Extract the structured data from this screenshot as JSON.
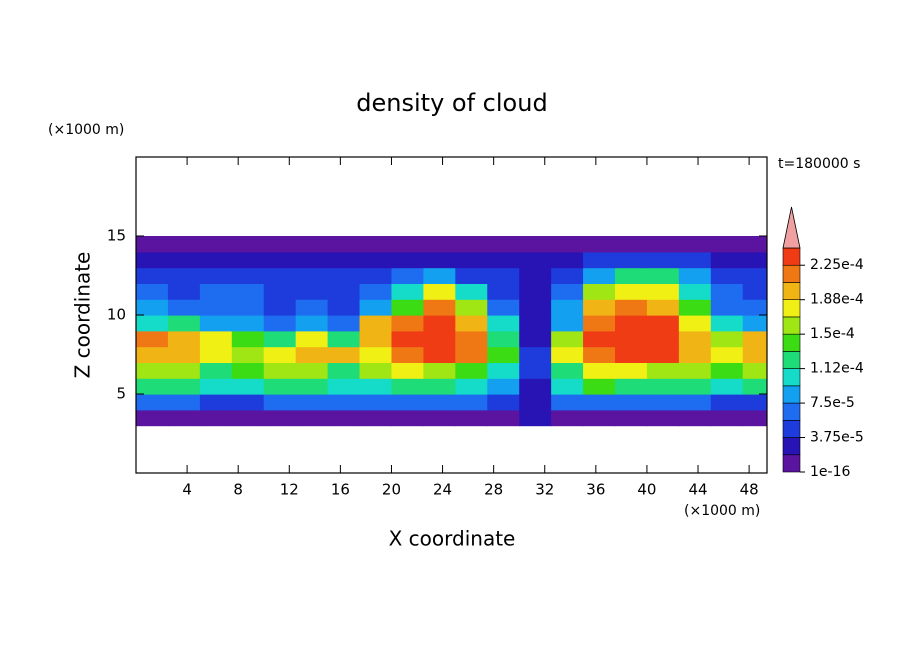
{
  "chart_data": {
    "type": "contour",
    "title": "density of cloud",
    "time_label": "t=180000 s",
    "xlabel": "X coordinate",
    "ylabel": "Z coordinate",
    "x_unit": "(×1000 m)",
    "y_unit": "(×1000 m)",
    "xlim": [
      0,
      49.4
    ],
    "ylim": [
      0,
      20
    ],
    "xticks": [
      4,
      8,
      12,
      16,
      20,
      24,
      28,
      32,
      36,
      40,
      44,
      48
    ],
    "yticks": [
      5,
      10,
      15
    ],
    "x": [
      1.25,
      3.75,
      6.25,
      8.75,
      11.25,
      13.75,
      16.25,
      18.75,
      21.25,
      23.75,
      26.25,
      28.75,
      31.25,
      33.75,
      36.25,
      38.75,
      41.25,
      43.75,
      46.25,
      48.75
    ],
    "y": [
      3.5,
      4.5,
      5.5,
      6.5,
      7.5,
      8.5,
      9.5,
      10.5,
      11.5,
      12.5,
      13.5,
      14.5
    ],
    "z": [
      [
        1e-05,
        1e-05,
        1e-05,
        1e-05,
        1e-05,
        1e-05,
        1e-05,
        1e-05,
        1e-05,
        1e-05,
        1e-05,
        1e-05,
        2e-05,
        1e-05,
        1e-05,
        1e-05,
        1e-05,
        1e-05,
        1e-05,
        1e-05
      ],
      [
        6e-05,
        6e-05,
        5e-05,
        5e-05,
        6e-05,
        6e-05,
        6e-05,
        6e-05,
        6e-05,
        6e-05,
        6e-05,
        5e-05,
        3e-05,
        6e-05,
        7e-05,
        7e-05,
        6e-05,
        6e-05,
        5e-05,
        5e-05
      ],
      [
        0.00012,
        0.00012,
        0.0001,
        0.00011,
        0.00012,
        0.00012,
        0.0001,
        0.00011,
        0.00012,
        0.00012,
        0.0001,
        9e-05,
        3e-05,
        0.0001,
        0.00014,
        0.00013,
        0.00012,
        0.00012,
        0.00011,
        0.00012
      ],
      [
        0.00016,
        0.00015,
        0.00013,
        0.00014,
        0.00015,
        0.00015,
        0.00013,
        0.00015,
        0.00017,
        0.00016,
        0.00014,
        0.0001,
        4e-05,
        0.00013,
        0.00018,
        0.00017,
        0.00016,
        0.00015,
        0.00014,
        0.00015
      ],
      [
        0.0002,
        0.00019,
        0.00017,
        0.00016,
        0.00018,
        0.0002,
        0.00019,
        0.00017,
        0.00022,
        0.00023,
        0.00021,
        0.00014,
        4e-05,
        0.00017,
        0.00022,
        0.00023,
        0.00023,
        0.0002,
        0.00017,
        0.00019
      ],
      [
        0.00021,
        0.0002,
        0.00018,
        0.00014,
        0.00013,
        0.00017,
        0.00013,
        0.00019,
        0.00023,
        0.00023,
        0.00022,
        0.00013,
        3e-05,
        0.00015,
        0.00023,
        0.00024,
        0.00024,
        0.0002,
        0.00016,
        0.0002
      ],
      [
        0.00011,
        0.00012,
        9e-05,
        8e-05,
        7e-05,
        8e-05,
        7e-05,
        0.00019,
        0.00021,
        0.00023,
        0.00019,
        0.0001,
        2e-05,
        9e-05,
        0.00022,
        0.00023,
        0.00023,
        0.00018,
        0.0001,
        9e-05
      ],
      [
        8e-05,
        7e-05,
        6e-05,
        6e-05,
        5e-05,
        6e-05,
        5e-05,
        9e-05,
        0.00014,
        0.00022,
        0.00015,
        6e-05,
        2e-05,
        8e-05,
        0.0002,
        0.00021,
        0.0002,
        0.00014,
        7e-05,
        6e-05
      ],
      [
        6e-05,
        5e-05,
        6e-05,
        6e-05,
        5e-05,
        5e-05,
        5e-05,
        6e-05,
        0.00011,
        0.00018,
        0.0001,
        5e-05,
        2e-05,
        6e-05,
        0.00016,
        0.00018,
        0.00017,
        0.00011,
        6e-05,
        5e-05
      ],
      [
        5e-05,
        4e-05,
        4e-05,
        5e-05,
        4e-05,
        4e-05,
        4e-05,
        4e-05,
        6e-05,
        8e-05,
        5e-05,
        4e-05,
        3e-05,
        4e-05,
        8e-05,
        0.00012,
        0.00012,
        8e-05,
        5e-05,
        4e-05
      ],
      [
        3e-05,
        3e-05,
        3e-05,
        3e-05,
        3e-05,
        3e-05,
        3e-05,
        3e-05,
        3e-05,
        3e-05,
        3e-05,
        3e-05,
        3e-05,
        3e-05,
        4e-05,
        5e-05,
        5e-05,
        4e-05,
        3e-05,
        3e-05
      ],
      [
        1e-05,
        1e-05,
        1e-05,
        1e-05,
        1e-05,
        1e-05,
        1e-05,
        1e-05,
        1e-05,
        1e-05,
        1e-05,
        1e-05,
        1e-05,
        1e-05,
        1e-05,
        1e-05,
        1e-05,
        1e-05,
        1e-05,
        1e-05
      ]
    ],
    "levels": [
      1e-16,
      1.875e-05,
      3.75e-05,
      5.625e-05,
      7.5e-05,
      9.375e-05,
      0.0001125,
      0.00013125,
      0.00015,
      0.00016875,
      0.0001875,
      0.00020625,
      0.000225,
      0.00024375
    ],
    "colors": [
      "#5a14a0",
      "#2814b4",
      "#1e3cdc",
      "#1e6cf0",
      "#14a0f0",
      "#14dcc8",
      "#1edc78",
      "#3cdc14",
      "#a0e614",
      "#f0f014",
      "#f0b414",
      "#f07814",
      "#f03c14"
    ],
    "extend_color": "#f0a0a0",
    "colorbar_ticks": [
      1e-16,
      {
        "value": 3.75e-05,
        "label": "3.75e-5"
      },
      {
        "value": 7.5e-05,
        "label": "7.5e-5"
      },
      {
        "value": 0.0001125,
        "label": "1.12e-4"
      },
      {
        "value": 0.00015,
        "label": "1.5e-4"
      },
      {
        "value": 0.0001875,
        "label": "1.88e-4"
      },
      {
        "value": 0.000225,
        "label": "2.25e-4"
      }
    ]
  }
}
